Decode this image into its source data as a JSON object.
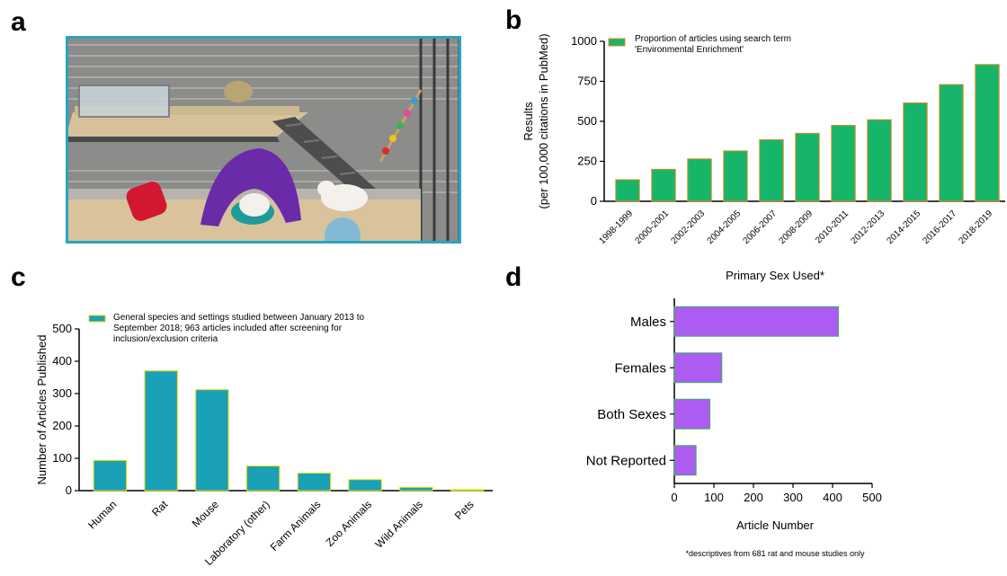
{
  "panels": {
    "a": "a",
    "b": "b",
    "c": "c",
    "d": "d"
  },
  "colors": {
    "green_bar": "#17b56a",
    "green_edge": "#e0891e",
    "teal_bar": "#1aa0b7",
    "teal_edge": "#d9e000",
    "purple_bar": "#ad5cf2",
    "purple_edge": "#3cb35c",
    "photo_frame": "#2aa3c2"
  },
  "photo": {
    "description_icon": "rat-cage-photo"
  },
  "chart_data": [
    {
      "id": "b",
      "type": "bar",
      "categories": [
        "1998-1999",
        "2000-2001",
        "2002-2003",
        "2004-2005",
        "2006-2007",
        "2008-2009",
        "2010-2011",
        "2012-2013",
        "2014-2015",
        "2016-2017",
        "2018-2019"
      ],
      "values": [
        135,
        200,
        265,
        315,
        385,
        425,
        475,
        510,
        615,
        730,
        855
      ],
      "ylim": [
        0,
        1000
      ],
      "yticks": [
        0,
        250,
        500,
        750,
        1000
      ],
      "ylabel_line1": "Results",
      "ylabel_line2": "(per 100,000 citations in PubMed)",
      "legend": [
        "Proportion of articles using search term",
        "'Environmental Enrichment'"
      ],
      "legend_position": "top-left"
    },
    {
      "id": "c",
      "type": "bar",
      "categories": [
        "Human",
        "Rat",
        "Mouse",
        "Laboratory (other)",
        "Farm Animals",
        "Zoo Animals",
        "Wild Animals",
        "Pets"
      ],
      "values": [
        93,
        370,
        312,
        76,
        54,
        34,
        10,
        3
      ],
      "ylim": [
        0,
        500
      ],
      "yticks": [
        0,
        100,
        200,
        300,
        400,
        500
      ],
      "ylabel": "Number of Articles  Published",
      "legend": [
        "General species and settings studied between January 2013 to",
        "September 2018; 963 articles included after screening for",
        "inclusion/exclusion criteria"
      ],
      "legend_position": "top"
    },
    {
      "id": "d",
      "type": "bar",
      "orientation": "horizontal",
      "title": "Primary Sex Used*",
      "categories": [
        "Males",
        "Females",
        "Both Sexes",
        "Not Reported"
      ],
      "values": [
        415,
        120,
        90,
        55
      ],
      "xlim": [
        0,
        500
      ],
      "xticks": [
        0,
        100,
        200,
        300,
        400,
        500
      ],
      "xlabel": "Article Number",
      "footnote": "*descriptives from 681 rat and mouse studies only"
    }
  ]
}
